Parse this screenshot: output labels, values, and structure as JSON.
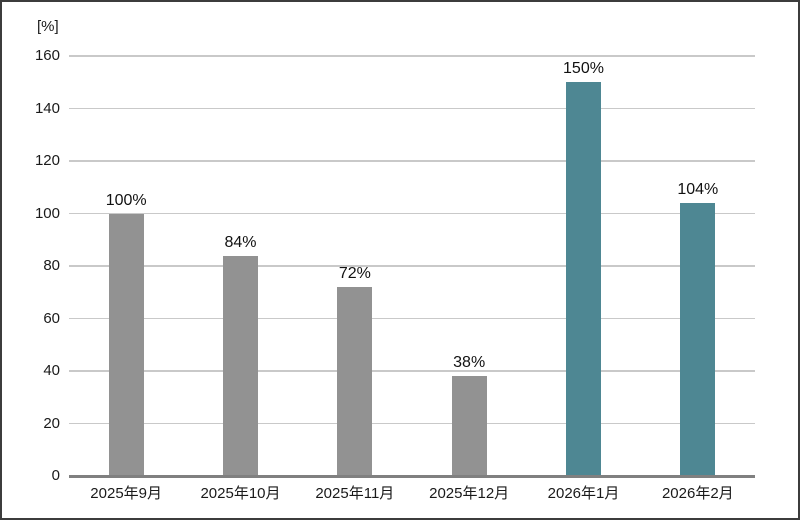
{
  "chart_data": {
    "type": "bar",
    "title": "",
    "xlabel": "",
    "ylabel": "[%]",
    "categories": [
      "2025年9月",
      "2025年10月",
      "2025年11月",
      "2025年12月",
      "2026年1月",
      "2026年2月"
    ],
    "values": [
      100,
      84,
      72,
      38,
      150,
      104
    ],
    "value_labels": [
      "100%",
      "84%",
      "72%",
      "38%",
      "150%",
      "104%"
    ],
    "bar_colors": [
      "#929292",
      "#929292",
      "#929292",
      "#929292",
      "#4e8793",
      "#4e8793"
    ],
    "ylim": [
      0,
      160
    ],
    "yticks": [
      0,
      20,
      40,
      60,
      80,
      100,
      120,
      140,
      160
    ],
    "grid": true,
    "legend": "none"
  },
  "colors": {
    "bar_gray": "#929292",
    "bar_teal": "#4e8793",
    "gridline": "#c9c9c9",
    "axis_line": "#808080",
    "text": "#1a1a1a",
    "frame_border": "#3c3c3c",
    "background": "#ffffff"
  }
}
